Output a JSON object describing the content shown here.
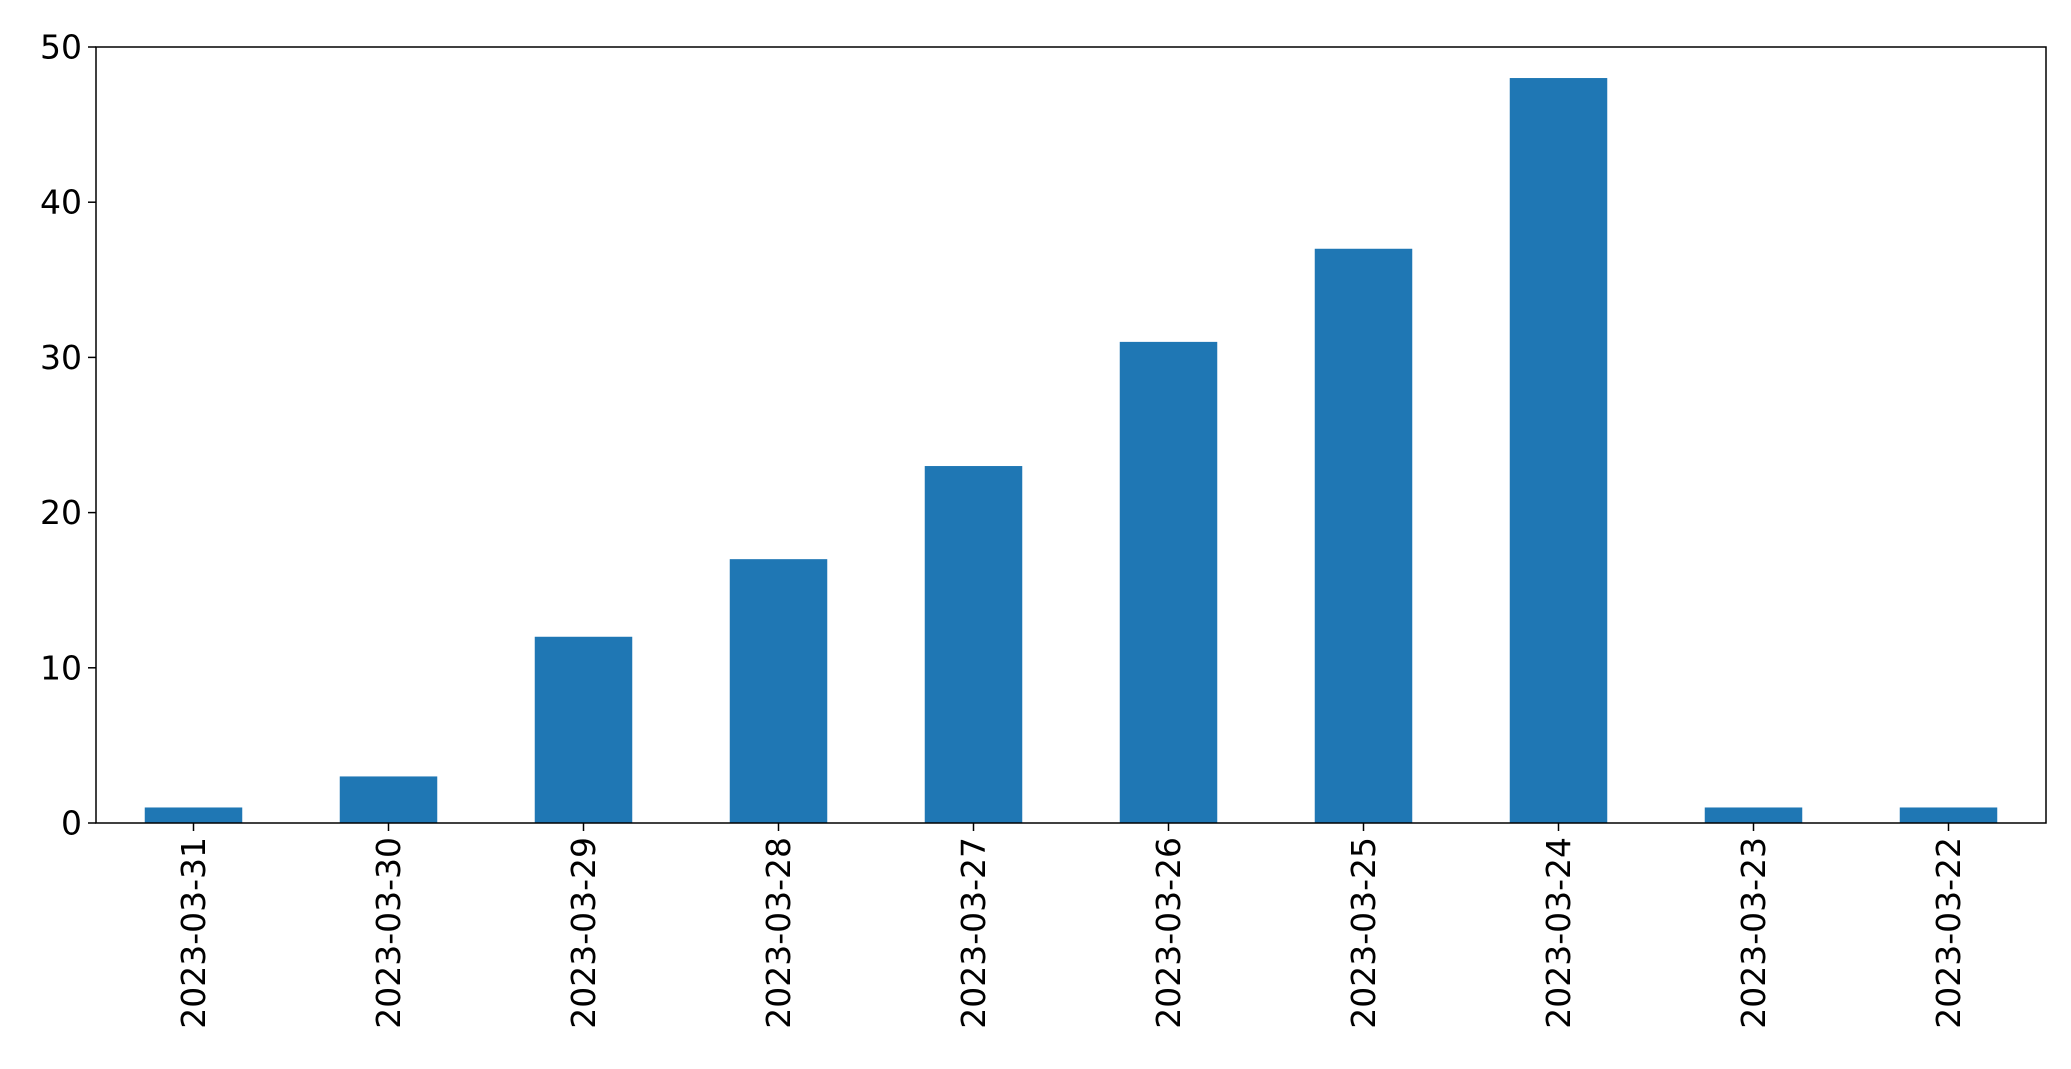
{
  "chart_data": {
    "type": "bar",
    "categories": [
      "2023-03-31",
      "2023-03-30",
      "2023-03-29",
      "2023-03-28",
      "2023-03-27",
      "2023-03-26",
      "2023-03-25",
      "2023-03-24",
      "2023-03-23",
      "2023-03-22"
    ],
    "values": [
      1,
      3,
      12,
      17,
      23,
      31,
      37,
      48,
      1,
      1
    ],
    "title": "",
    "xlabel": "",
    "ylabel": "",
    "ylim": [
      0,
      50
    ],
    "yticks": [
      0,
      10,
      20,
      30,
      40,
      50
    ],
    "grid": false,
    "legend": "none",
    "x_tick_rotation": 90,
    "bar_color": "#1f77b4"
  }
}
